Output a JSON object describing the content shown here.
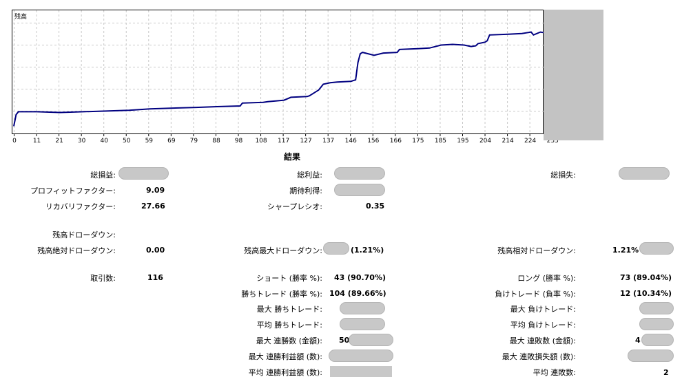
{
  "chart_data": {
    "type": "line",
    "ylabel": "残高",
    "x_ticks": [
      "0",
      "11",
      "21",
      "30",
      "40",
      "50",
      "59",
      "69",
      "79",
      "88",
      "98",
      "108",
      "117",
      "127",
      "137",
      "146",
      "156",
      "166",
      "175",
      "185",
      "195",
      "204",
      "214",
      "224",
      "233"
    ],
    "series": [
      {
        "x": [
          0,
          1,
          2,
          10,
          20,
          30,
          40,
          50,
          59,
          69,
          79,
          88,
          98,
          99,
          108,
          110,
          117,
          120,
          127,
          128,
          132,
          134,
          137,
          140,
          146,
          147,
          148,
          149,
          150,
          151,
          156,
          160,
          166,
          167,
          175,
          180,
          185,
          190,
          195,
          198,
          200,
          201,
          204,
          205,
          206,
          214,
          220,
          224,
          225,
          228,
          230,
          231,
          233,
          235
        ],
        "y": [
          3,
          3.8,
          4,
          4,
          3.95,
          4,
          4.05,
          4.1,
          4.2,
          4.25,
          4.3,
          4.35,
          4.4,
          4.6,
          4.65,
          4.7,
          4.8,
          5,
          5.05,
          5.1,
          5.5,
          5.9,
          6,
          6.05,
          6.1,
          6.15,
          6.2,
          7.4,
          8,
          8.1,
          7.9,
          8.05,
          8.1,
          8.3,
          8.35,
          8.4,
          8.6,
          8.65,
          8.6,
          8.5,
          8.55,
          8.7,
          8.8,
          8.9,
          9.3,
          9.35,
          9.4,
          9.5,
          9.3,
          9.5,
          9.45,
          10.7,
          10.8,
          10.9
        ]
      }
    ],
    "xlim": [
      0,
      235
    ],
    "ylim": [
      2.5,
      11
    ],
    "grid": true
  },
  "results": {
    "title": "結果",
    "col1": [
      {
        "label": "総損益:",
        "value": "",
        "redacted": true
      },
      {
        "label": "プロフィットファクター:",
        "value": "9.09"
      },
      {
        "label": "リカバリファクター:",
        "value": "27.66"
      },
      {
        "label": "残高ドローダウン:",
        "value": ""
      },
      {
        "label": "残高絶対ドローダウン:",
        "value": "0.00"
      },
      {
        "label": "取引数:",
        "value": "116"
      }
    ],
    "col2": [
      {
        "label": "総利益:",
        "value": "",
        "redacted": true
      },
      {
        "label": "期待利得:",
        "value": "",
        "redacted": true
      },
      {
        "label": "シャープレシオ:",
        "value": "0.35"
      },
      {
        "label": "残高最大ドローダウン:",
        "value": "(1.21%)"
      },
      {
        "label": "ショート (勝率 %):",
        "value": "43 (90.70%)"
      },
      {
        "label": "勝ちトレード (勝率 %):",
        "value": "104 (89.66%)"
      },
      {
        "label": "最大 勝ちトレード:",
        "value": ""
      },
      {
        "label": "平均 勝ちトレード:",
        "value": ""
      },
      {
        "label": "最大 連勝数 (金額):",
        "value": "50"
      },
      {
        "label": "最大 連勝利益額 (数):",
        "value": ""
      },
      {
        "label": "平均 連勝利益額 (数):",
        "value": ""
      }
    ],
    "col3": [
      {
        "label": "総損失:",
        "value": ""
      },
      {
        "label": "残高相対ドローダウン:",
        "value": "1.21%"
      },
      {
        "label": "ロング (勝率 %):",
        "value": "73 (89.04%)"
      },
      {
        "label": "負けトレード (負率 %):",
        "value": "12 (10.34%)"
      },
      {
        "label": "最大 負けトレード:",
        "value": ""
      },
      {
        "label": "平均 負けトレード:",
        "value": ""
      },
      {
        "label": "最大 連敗数 (金額):",
        "value": "4 ("
      },
      {
        "label": "最大 連敗損失額 (数):",
        "value": ""
      },
      {
        "label": "平均 連敗数:",
        "value": "2"
      }
    ]
  },
  "colors": {
    "line": "#000080",
    "grid": "#c8c8c8",
    "redaction": "#c8c8c8"
  }
}
